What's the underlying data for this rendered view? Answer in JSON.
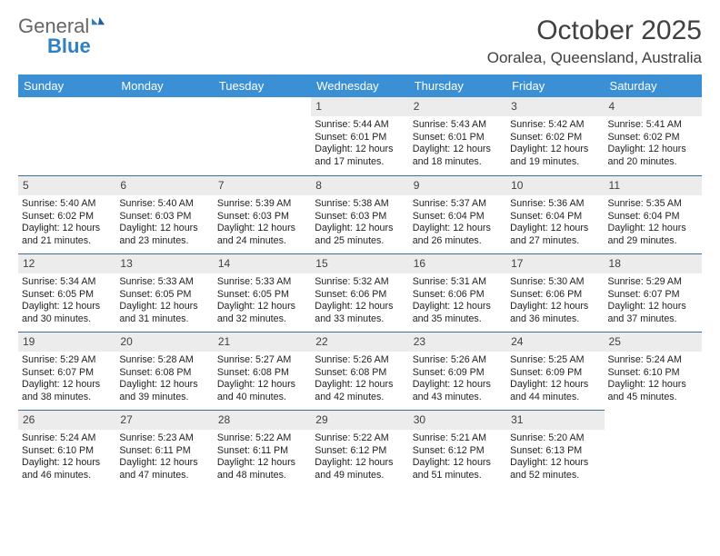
{
  "brand": {
    "general": "General",
    "blue": "Blue"
  },
  "title": "October 2025",
  "location": "Ooralea, Queensland, Australia",
  "theme": {
    "header_bg": "#3b8fd4",
    "header_fg": "#ffffff",
    "daynum_bg": "#ececec",
    "rule_color": "#3b6fa0",
    "page_bg": "#ffffff"
  },
  "weekdays": [
    "Sunday",
    "Monday",
    "Tuesday",
    "Wednesday",
    "Thursday",
    "Friday",
    "Saturday"
  ],
  "lead_blanks": 3,
  "days": [
    {
      "n": 1,
      "sr": "5:44 AM",
      "ss": "6:01 PM",
      "dl": "12 hours and 17 minutes."
    },
    {
      "n": 2,
      "sr": "5:43 AM",
      "ss": "6:01 PM",
      "dl": "12 hours and 18 minutes."
    },
    {
      "n": 3,
      "sr": "5:42 AM",
      "ss": "6:02 PM",
      "dl": "12 hours and 19 minutes."
    },
    {
      "n": 4,
      "sr": "5:41 AM",
      "ss": "6:02 PM",
      "dl": "12 hours and 20 minutes."
    },
    {
      "n": 5,
      "sr": "5:40 AM",
      "ss": "6:02 PM",
      "dl": "12 hours and 21 minutes."
    },
    {
      "n": 6,
      "sr": "5:40 AM",
      "ss": "6:03 PM",
      "dl": "12 hours and 23 minutes."
    },
    {
      "n": 7,
      "sr": "5:39 AM",
      "ss": "6:03 PM",
      "dl": "12 hours and 24 minutes."
    },
    {
      "n": 8,
      "sr": "5:38 AM",
      "ss": "6:03 PM",
      "dl": "12 hours and 25 minutes."
    },
    {
      "n": 9,
      "sr": "5:37 AM",
      "ss": "6:04 PM",
      "dl": "12 hours and 26 minutes."
    },
    {
      "n": 10,
      "sr": "5:36 AM",
      "ss": "6:04 PM",
      "dl": "12 hours and 27 minutes."
    },
    {
      "n": 11,
      "sr": "5:35 AM",
      "ss": "6:04 PM",
      "dl": "12 hours and 29 minutes."
    },
    {
      "n": 12,
      "sr": "5:34 AM",
      "ss": "6:05 PM",
      "dl": "12 hours and 30 minutes."
    },
    {
      "n": 13,
      "sr": "5:33 AM",
      "ss": "6:05 PM",
      "dl": "12 hours and 31 minutes."
    },
    {
      "n": 14,
      "sr": "5:33 AM",
      "ss": "6:05 PM",
      "dl": "12 hours and 32 minutes."
    },
    {
      "n": 15,
      "sr": "5:32 AM",
      "ss": "6:06 PM",
      "dl": "12 hours and 33 minutes."
    },
    {
      "n": 16,
      "sr": "5:31 AM",
      "ss": "6:06 PM",
      "dl": "12 hours and 35 minutes."
    },
    {
      "n": 17,
      "sr": "5:30 AM",
      "ss": "6:06 PM",
      "dl": "12 hours and 36 minutes."
    },
    {
      "n": 18,
      "sr": "5:29 AM",
      "ss": "6:07 PM",
      "dl": "12 hours and 37 minutes."
    },
    {
      "n": 19,
      "sr": "5:29 AM",
      "ss": "6:07 PM",
      "dl": "12 hours and 38 minutes."
    },
    {
      "n": 20,
      "sr": "5:28 AM",
      "ss": "6:08 PM",
      "dl": "12 hours and 39 minutes."
    },
    {
      "n": 21,
      "sr": "5:27 AM",
      "ss": "6:08 PM",
      "dl": "12 hours and 40 minutes."
    },
    {
      "n": 22,
      "sr": "5:26 AM",
      "ss": "6:08 PM",
      "dl": "12 hours and 42 minutes."
    },
    {
      "n": 23,
      "sr": "5:26 AM",
      "ss": "6:09 PM",
      "dl": "12 hours and 43 minutes."
    },
    {
      "n": 24,
      "sr": "5:25 AM",
      "ss": "6:09 PM",
      "dl": "12 hours and 44 minutes."
    },
    {
      "n": 25,
      "sr": "5:24 AM",
      "ss": "6:10 PM",
      "dl": "12 hours and 45 minutes."
    },
    {
      "n": 26,
      "sr": "5:24 AM",
      "ss": "6:10 PM",
      "dl": "12 hours and 46 minutes."
    },
    {
      "n": 27,
      "sr": "5:23 AM",
      "ss": "6:11 PM",
      "dl": "12 hours and 47 minutes."
    },
    {
      "n": 28,
      "sr": "5:22 AM",
      "ss": "6:11 PM",
      "dl": "12 hours and 48 minutes."
    },
    {
      "n": 29,
      "sr": "5:22 AM",
      "ss": "6:12 PM",
      "dl": "12 hours and 49 minutes."
    },
    {
      "n": 30,
      "sr": "5:21 AM",
      "ss": "6:12 PM",
      "dl": "12 hours and 51 minutes."
    },
    {
      "n": 31,
      "sr": "5:20 AM",
      "ss": "6:13 PM",
      "dl": "12 hours and 52 minutes."
    }
  ],
  "labels": {
    "sunrise": "Sunrise:",
    "sunset": "Sunset:",
    "daylight": "Daylight:"
  }
}
